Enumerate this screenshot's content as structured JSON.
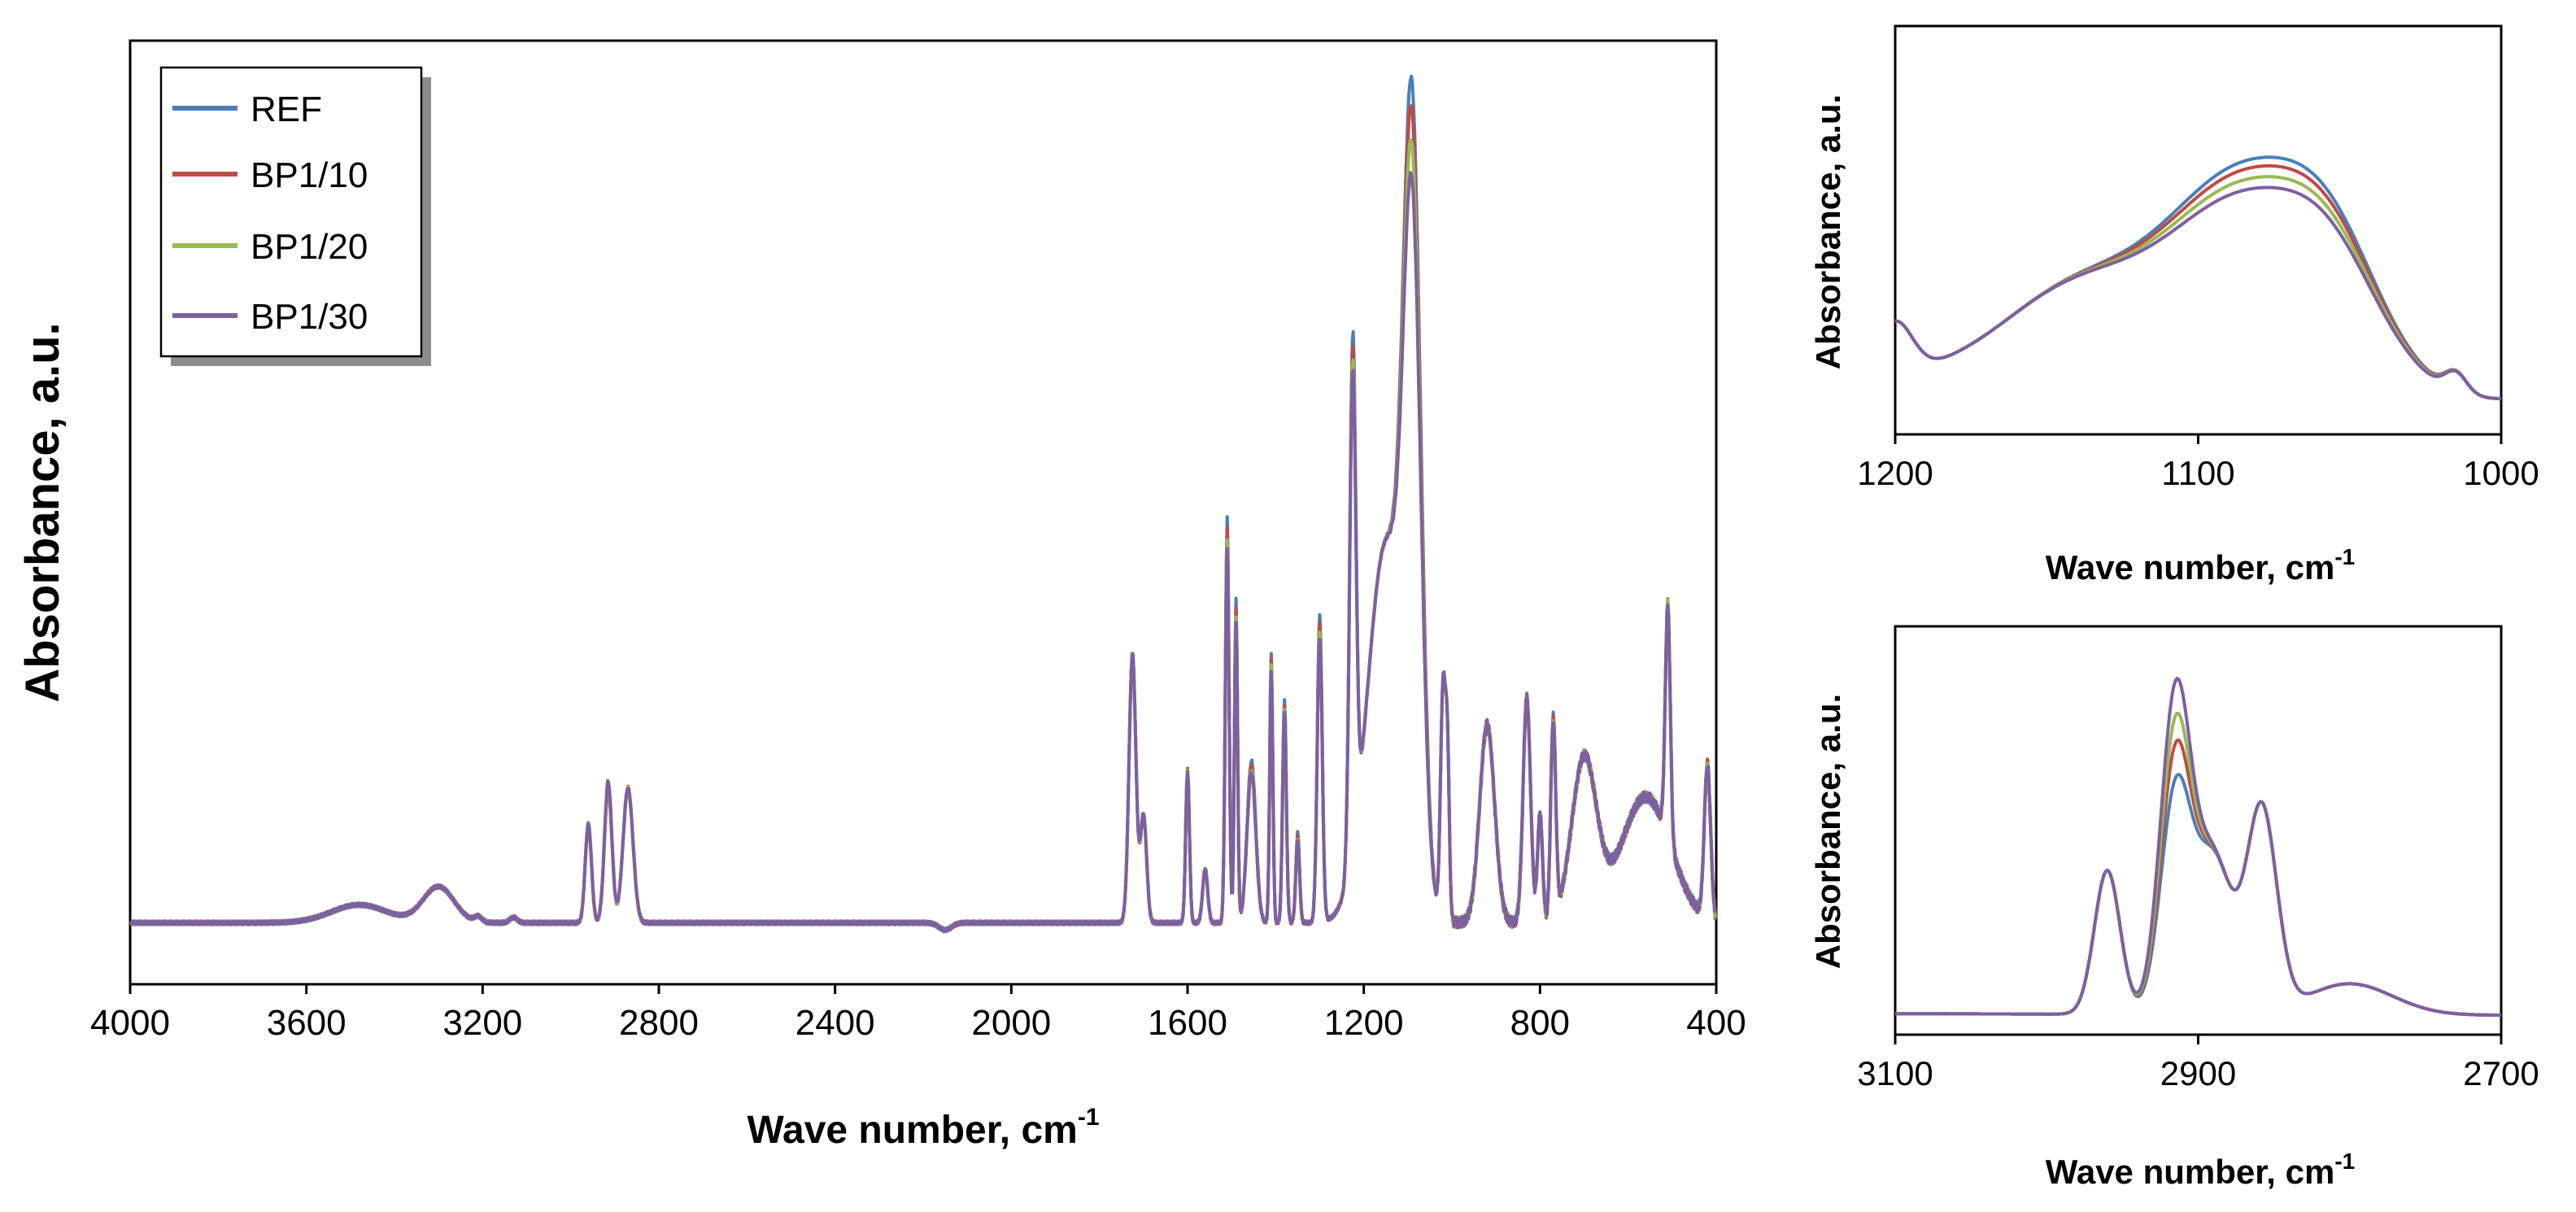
{
  "chart_data": [
    {
      "id": "main",
      "type": "line",
      "title": "",
      "xlabel": "Wave number, cm",
      "xlabel_sup": "-1",
      "ylabel": "Absorbance, a.u.",
      "xlim": [
        4000,
        400
      ],
      "ylim": [
        0,
        1.05
      ],
      "xticks": [
        "4000",
        "3600",
        "3200",
        "2800",
        "2400",
        "2000",
        "1600",
        "1200",
        "800",
        "400"
      ],
      "grid": false,
      "legend": {
        "position": "top-left",
        "entries": [
          "REF",
          "BP1/10",
          "BP1/20",
          "BP1/30"
        ]
      },
      "series": [
        {
          "name": "REF",
          "color": "#4a7ebb",
          "scale": [
            1.0,
            1.0,
            1.0
          ]
        },
        {
          "name": "BP1/10",
          "color": "#be4b48",
          "scale": [
            0.96,
            0.975,
            0.99
          ]
        },
        {
          "name": "BP1/20",
          "color": "#98b954",
          "scale": [
            0.91,
            0.95,
            1.02
          ]
        },
        {
          "name": "BP1/30",
          "color": "#7d60a0",
          "scale": [
            0.86,
            0.93,
            1.05
          ]
        }
      ],
      "baseline": 0.0,
      "peaks": [
        [
          3480,
          0.02,
          90
        ],
        [
          3300,
          0.04,
          50
        ],
        [
          3210,
          0.006,
          12
        ],
        [
          3130,
          0.006,
          12
        ],
        [
          2960,
          0.11,
          10
        ],
        [
          2915,
          0.15,
          12
        ],
        [
          2870,
          0.15,
          16
        ],
        [
          2150,
          -0.008,
          20
        ],
        [
          1725,
          0.3,
          11
        ],
        [
          1700,
          0.12,
          10
        ],
        [
          1600,
          0.17,
          6
        ],
        [
          1560,
          0.06,
          8
        ],
        [
          1510,
          0.45,
          6
        ],
        [
          1490,
          0.36,
          5
        ],
        [
          1455,
          0.18,
          14
        ],
        [
          1410,
          0.3,
          5
        ],
        [
          1380,
          0.25,
          6
        ],
        [
          1350,
          0.1,
          6
        ],
        [
          1300,
          0.34,
          8
        ],
        [
          1225,
          0.57,
          10
        ],
        [
          1150,
          0.42,
          60
        ],
        [
          1090,
          0.78,
          28
        ],
        [
          1020,
          0.26,
          8
        ],
        [
          1010,
          0.17,
          6
        ],
        [
          920,
          0.22,
          24
        ],
        [
          830,
          0.25,
          12
        ],
        [
          800,
          0.12,
          8
        ],
        [
          770,
          0.22,
          8
        ],
        [
          700,
          0.18,
          40
        ],
        [
          560,
          0.14,
          80
        ],
        [
          510,
          0.26,
          8
        ],
        [
          420,
          0.17,
          10
        ]
      ],
      "main_band": 1090
    },
    {
      "id": "inset_top",
      "type": "line",
      "title": "",
      "xlabel": "Wave number,  cm",
      "xlabel_sup": "-1",
      "ylabel": "Absorbance, a.u.",
      "xlim": [
        1200,
        1000
      ],
      "ylim": [
        0,
        1.05
      ],
      "xticks": [
        "1200",
        "1100",
        "1000"
      ],
      "grid": false,
      "series_colors": [
        "#4a7ebb",
        "#be4b48",
        "#98b954",
        "#7d60a0"
      ],
      "series_scale": [
        1.0,
        0.96,
        0.91,
        0.86
      ]
    },
    {
      "id": "inset_bottom",
      "type": "line",
      "title": "",
      "xlabel": "Wave number,  cm",
      "xlabel_sup": "-1",
      "ylabel": "Absorbance, a.u.",
      "xlim": [
        3100,
        2700
      ],
      "ylim": [
        0,
        1.05
      ],
      "xticks": [
        "3100",
        "2900",
        "2700"
      ],
      "grid": false,
      "series_colors": [
        "#4a7ebb",
        "#be4b48",
        "#98b954",
        "#7d60a0"
      ],
      "series_h2915": [
        0.55,
        0.64,
        0.71,
        0.8
      ]
    }
  ]
}
